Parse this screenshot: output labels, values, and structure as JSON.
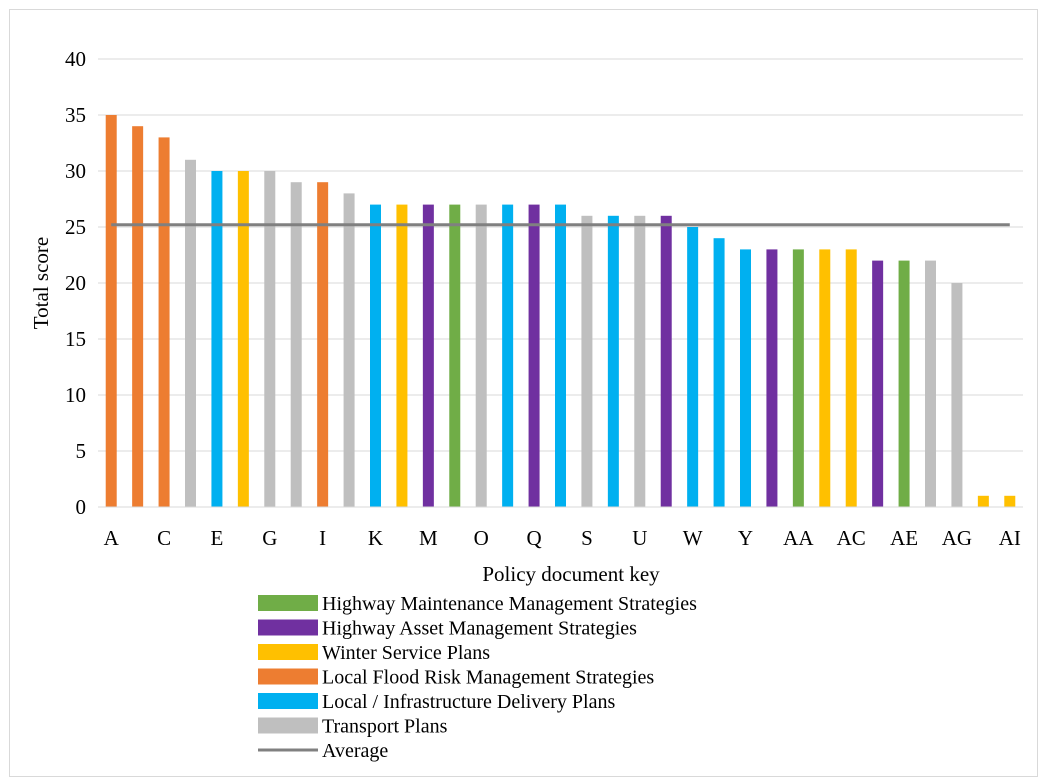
{
  "chart_data": {
    "type": "bar",
    "title": "",
    "xlabel": "Policy document key",
    "ylabel": "Total score",
    "ylim": [
      0,
      40
    ],
    "yticks": [
      0,
      5,
      10,
      15,
      20,
      25,
      30,
      35,
      40
    ],
    "grid": true,
    "legend_position": "bottom",
    "categories": [
      "A",
      "B",
      "C",
      "D",
      "E",
      "F",
      "G",
      "H",
      "I",
      "J",
      "K",
      "L",
      "M",
      "N",
      "O",
      "P",
      "Q",
      "R",
      "S",
      "T",
      "U",
      "V",
      "W",
      "X",
      "Y",
      "Z",
      "AA",
      "AB",
      "AC",
      "AD",
      "AE",
      "AF",
      "AG",
      "AH",
      "AI"
    ],
    "x_tick_labels": [
      "A",
      "C",
      "E",
      "G",
      "I",
      "K",
      "M",
      "O",
      "Q",
      "S",
      "U",
      "W",
      "Y",
      "AA",
      "AC",
      "AE",
      "AG",
      "AI"
    ],
    "values": [
      35,
      34,
      33,
      31,
      30,
      30,
      30,
      29,
      29,
      28,
      27,
      27,
      27,
      27,
      27,
      27,
      27,
      27,
      26,
      26,
      26,
      26,
      25,
      24,
      23,
      23,
      23,
      23,
      23,
      22,
      22,
      22,
      20,
      1,
      1
    ],
    "bar_types": [
      "Local Flood Risk Management Strategies",
      "Local Flood Risk Management Strategies",
      "Local Flood Risk Management Strategies",
      "Transport Plans",
      "Local / Infrastructure Delivery Plans",
      "Winter Service Plans",
      "Transport Plans",
      "Transport Plans",
      "Local Flood Risk Management Strategies",
      "Transport Plans",
      "Local / Infrastructure Delivery Plans",
      "Winter Service Plans",
      "Highway Asset Management Strategies",
      "Highway Maintenance Management Strategies",
      "Transport Plans",
      "Local / Infrastructure Delivery Plans",
      "Highway Asset Management Strategies",
      "Local / Infrastructure Delivery Plans",
      "Transport Plans",
      "Local / Infrastructure Delivery Plans",
      "Transport Plans",
      "Highway Asset Management Strategies",
      "Local / Infrastructure Delivery Plans",
      "Local / Infrastructure Delivery Plans",
      "Local / Infrastructure Delivery Plans",
      "Highway Asset Management Strategies",
      "Highway Maintenance Management Strategies",
      "Winter Service Plans",
      "Winter Service Plans",
      "Highway Asset Management Strategies",
      "Highway Maintenance Management Strategies",
      "Transport Plans",
      "Transport Plans",
      "Winter Service Plans",
      "Winter Service Plans"
    ],
    "average": 25.2,
    "series": [
      {
        "name": "Highway Maintenance Management Strategies",
        "color": "#70ad47",
        "kind": "bar"
      },
      {
        "name": "Highway Asset Management Strategies",
        "color": "#7030a0",
        "kind": "bar"
      },
      {
        "name": "Winter Service Plans",
        "color": "#ffc000",
        "kind": "bar"
      },
      {
        "name": "Local Flood Risk Management Strategies",
        "color": "#ed7d31",
        "kind": "bar"
      },
      {
        "name": "Local / Infrastructure Delivery Plans",
        "color": "#00b0f0",
        "kind": "bar"
      },
      {
        "name": "Transport Plans",
        "color": "#bfbfbf",
        "kind": "bar"
      },
      {
        "name": "Average",
        "color": "#808080",
        "kind": "line"
      }
    ]
  }
}
